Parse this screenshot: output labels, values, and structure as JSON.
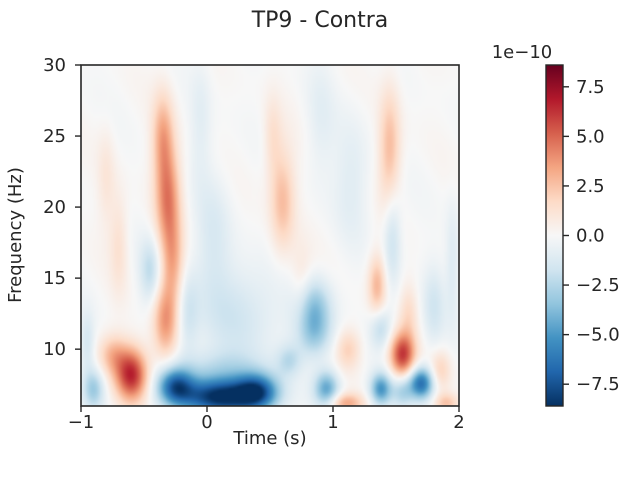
{
  "chart_data": [
    {
      "type": "heatmap",
      "title": "TP9 - Contra",
      "xlabel": "Time (s)",
      "ylabel": "Frequency (Hz)",
      "xlim": [
        -1,
        2
      ],
      "ylim": [
        6,
        30
      ],
      "x_ticks": [
        -1,
        0,
        1,
        2
      ],
      "x_tick_labels": [
        "−1",
        "0",
        "1",
        "2"
      ],
      "y_ticks": [
        10,
        15,
        20,
        25,
        30
      ],
      "y_tick_labels": [
        "10",
        "15",
        "20",
        "25",
        "30"
      ],
      "grid": false,
      "colormap": "RdBu_r",
      "colorbar": {
        "range": [
          -8.6,
          8.6
        ],
        "ticks": [
          -7.5,
          -5.0,
          -2.5,
          0.0,
          2.5,
          5.0,
          7.5
        ],
        "tick_labels": [
          "−7.5",
          "−5.0",
          "−2.5",
          "0.0",
          "2.5",
          "5.0",
          "7.5"
        ],
        "offset_text": "1e−10"
      },
      "blobs": [
        {
          "t": -0.6,
          "f": 8.2,
          "st": 0.09,
          "sf": 1.3,
          "v": 6.5
        },
        {
          "t": -0.75,
          "f": 9.6,
          "st": 0.08,
          "sf": 1.0,
          "v": 2.5
        },
        {
          "t": -0.33,
          "f": 12.0,
          "st": 0.07,
          "sf": 1.9,
          "v": 3.8
        },
        {
          "t": -0.27,
          "f": 16.0,
          "st": 0.06,
          "sf": 2.0,
          "v": 2.6
        },
        {
          "t": -0.31,
          "f": 20.5,
          "st": 0.07,
          "sf": 2.6,
          "v": 4.2
        },
        {
          "t": -0.35,
          "f": 25.0,
          "st": 0.06,
          "sf": 2.2,
          "v": 3.0
        },
        {
          "t": -0.45,
          "f": 15.5,
          "st": 0.06,
          "sf": 1.6,
          "v": -2.2
        },
        {
          "t": -0.7,
          "f": 17.5,
          "st": 0.05,
          "sf": 2.5,
          "v": 1.3
        },
        {
          "t": -0.8,
          "f": 22.0,
          "st": 0.05,
          "sf": 2.5,
          "v": 1.0
        },
        {
          "t": -0.9,
          "f": 7.2,
          "st": 0.06,
          "sf": 1.0,
          "v": -3.0
        },
        {
          "t": -0.15,
          "f": 12.5,
          "st": 0.06,
          "sf": 2.0,
          "v": -1.5
        },
        {
          "t": 0.1,
          "f": 6.6,
          "st": 0.22,
          "sf": 0.9,
          "v": -8.6
        },
        {
          "t": -0.25,
          "f": 7.4,
          "st": 0.1,
          "sf": 0.9,
          "v": -6.0
        },
        {
          "t": 0.4,
          "f": 7.0,
          "st": 0.12,
          "sf": 0.9,
          "v": -6.2
        },
        {
          "t": 0.1,
          "f": 8.5,
          "st": 0.25,
          "sf": 1.0,
          "v": -2.0
        },
        {
          "t": 0.25,
          "f": 12.5,
          "st": 0.25,
          "sf": 2.5,
          "v": -1.6
        },
        {
          "t": 0.05,
          "f": 18.0,
          "st": 0.1,
          "sf": 3.0,
          "v": -1.2
        },
        {
          "t": 0.6,
          "f": 20.5,
          "st": 0.07,
          "sf": 2.6,
          "v": 2.7
        },
        {
          "t": 0.52,
          "f": 25.0,
          "st": 0.05,
          "sf": 2.0,
          "v": 1.3
        },
        {
          "t": 0.75,
          "f": 14.5,
          "st": 0.06,
          "sf": 2.0,
          "v": 1.2
        },
        {
          "t": 0.85,
          "f": 13.0,
          "st": 0.1,
          "sf": 1.4,
          "v": -3.2
        },
        {
          "t": 0.85,
          "f": 11.0,
          "st": 0.1,
          "sf": 1.2,
          "v": -2.5
        },
        {
          "t": 0.95,
          "f": 7.2,
          "st": 0.07,
          "sf": 0.9,
          "v": -4.5
        },
        {
          "t": 0.65,
          "f": 9.2,
          "st": 0.07,
          "sf": 0.8,
          "v": -2.0
        },
        {
          "t": 1.12,
          "f": 10.0,
          "st": 0.07,
          "sf": 1.0,
          "v": 2.0
        },
        {
          "t": 1.1,
          "f": 6.2,
          "st": 0.1,
          "sf": 0.5,
          "v": 3.2
        },
        {
          "t": 1.15,
          "f": 22.0,
          "st": 0.1,
          "sf": 3.0,
          "v": -1.0
        },
        {
          "t": 1.38,
          "f": 7.2,
          "st": 0.06,
          "sf": 0.8,
          "v": -5.0
        },
        {
          "t": 1.35,
          "f": 14.5,
          "st": 0.05,
          "sf": 1.5,
          "v": 2.9
        },
        {
          "t": 1.38,
          "f": 11.5,
          "st": 0.06,
          "sf": 1.0,
          "v": -2.2
        },
        {
          "t": 1.47,
          "f": 18.0,
          "st": 0.05,
          "sf": 2.5,
          "v": -2.0
        },
        {
          "t": 1.55,
          "f": 9.6,
          "st": 0.07,
          "sf": 1.1,
          "v": 6.0
        },
        {
          "t": 1.45,
          "f": 24.0,
          "st": 0.06,
          "sf": 3.0,
          "v": 2.8
        },
        {
          "t": 1.6,
          "f": 12.5,
          "st": 0.05,
          "sf": 1.5,
          "v": 1.5
        },
        {
          "t": 1.7,
          "f": 7.6,
          "st": 0.07,
          "sf": 0.8,
          "v": -6.5
        },
        {
          "t": 1.55,
          "f": 7.0,
          "st": 0.06,
          "sf": 0.8,
          "v": -2.5
        },
        {
          "t": 1.85,
          "f": 8.5,
          "st": 0.06,
          "sf": 1.0,
          "v": 2.0
        },
        {
          "t": 1.8,
          "f": 13.0,
          "st": 0.06,
          "sf": 2.0,
          "v": -1.5
        },
        {
          "t": 1.9,
          "f": 6.2,
          "st": 0.07,
          "sf": 0.5,
          "v": 2.5
        },
        {
          "t": 1.95,
          "f": 16.0,
          "st": 0.04,
          "sf": 3.0,
          "v": -1.2
        },
        {
          "t": -0.05,
          "f": 26.0,
          "st": 0.06,
          "sf": 3.0,
          "v": -0.9
        },
        {
          "t": 0.9,
          "f": 26.0,
          "st": 0.08,
          "sf": 3.0,
          "v": -0.8
        },
        {
          "t": -0.95,
          "f": 10.5,
          "st": 0.04,
          "sf": 1.5,
          "v": -1.5
        }
      ]
    }
  ]
}
